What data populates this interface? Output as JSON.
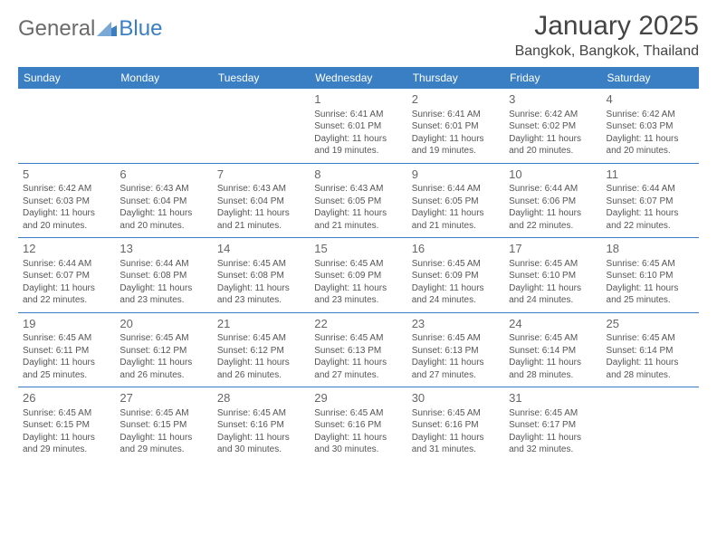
{
  "brand": {
    "name1": "General",
    "name2": "Blue"
  },
  "title": "January 2025",
  "location": "Bangkok, Bangkok, Thailand",
  "colors": {
    "header_bg": "#3a7fc4",
    "header_text": "#ffffff",
    "row_border": "#3a7fc4",
    "text": "#555555",
    "daynum": "#666666",
    "page_bg": "#ffffff"
  },
  "typography": {
    "title_fontsize": 30,
    "location_fontsize": 16,
    "weekday_fontsize": 12,
    "daynum_fontsize": 13,
    "body_fontsize": 10
  },
  "weekdays": [
    "Sunday",
    "Monday",
    "Tuesday",
    "Wednesday",
    "Thursday",
    "Friday",
    "Saturday"
  ],
  "weeks": [
    [
      null,
      null,
      null,
      {
        "d": "1",
        "sr": "Sunrise: 6:41 AM",
        "ss": "Sunset: 6:01 PM",
        "dl1": "Daylight: 11 hours",
        "dl2": "and 19 minutes."
      },
      {
        "d": "2",
        "sr": "Sunrise: 6:41 AM",
        "ss": "Sunset: 6:01 PM",
        "dl1": "Daylight: 11 hours",
        "dl2": "and 19 minutes."
      },
      {
        "d": "3",
        "sr": "Sunrise: 6:42 AM",
        "ss": "Sunset: 6:02 PM",
        "dl1": "Daylight: 11 hours",
        "dl2": "and 20 minutes."
      },
      {
        "d": "4",
        "sr": "Sunrise: 6:42 AM",
        "ss": "Sunset: 6:03 PM",
        "dl1": "Daylight: 11 hours",
        "dl2": "and 20 minutes."
      }
    ],
    [
      {
        "d": "5",
        "sr": "Sunrise: 6:42 AM",
        "ss": "Sunset: 6:03 PM",
        "dl1": "Daylight: 11 hours",
        "dl2": "and 20 minutes."
      },
      {
        "d": "6",
        "sr": "Sunrise: 6:43 AM",
        "ss": "Sunset: 6:04 PM",
        "dl1": "Daylight: 11 hours",
        "dl2": "and 20 minutes."
      },
      {
        "d": "7",
        "sr": "Sunrise: 6:43 AM",
        "ss": "Sunset: 6:04 PM",
        "dl1": "Daylight: 11 hours",
        "dl2": "and 21 minutes."
      },
      {
        "d": "8",
        "sr": "Sunrise: 6:43 AM",
        "ss": "Sunset: 6:05 PM",
        "dl1": "Daylight: 11 hours",
        "dl2": "and 21 minutes."
      },
      {
        "d": "9",
        "sr": "Sunrise: 6:44 AM",
        "ss": "Sunset: 6:05 PM",
        "dl1": "Daylight: 11 hours",
        "dl2": "and 21 minutes."
      },
      {
        "d": "10",
        "sr": "Sunrise: 6:44 AM",
        "ss": "Sunset: 6:06 PM",
        "dl1": "Daylight: 11 hours",
        "dl2": "and 22 minutes."
      },
      {
        "d": "11",
        "sr": "Sunrise: 6:44 AM",
        "ss": "Sunset: 6:07 PM",
        "dl1": "Daylight: 11 hours",
        "dl2": "and 22 minutes."
      }
    ],
    [
      {
        "d": "12",
        "sr": "Sunrise: 6:44 AM",
        "ss": "Sunset: 6:07 PM",
        "dl1": "Daylight: 11 hours",
        "dl2": "and 22 minutes."
      },
      {
        "d": "13",
        "sr": "Sunrise: 6:44 AM",
        "ss": "Sunset: 6:08 PM",
        "dl1": "Daylight: 11 hours",
        "dl2": "and 23 minutes."
      },
      {
        "d": "14",
        "sr": "Sunrise: 6:45 AM",
        "ss": "Sunset: 6:08 PM",
        "dl1": "Daylight: 11 hours",
        "dl2": "and 23 minutes."
      },
      {
        "d": "15",
        "sr": "Sunrise: 6:45 AM",
        "ss": "Sunset: 6:09 PM",
        "dl1": "Daylight: 11 hours",
        "dl2": "and 23 minutes."
      },
      {
        "d": "16",
        "sr": "Sunrise: 6:45 AM",
        "ss": "Sunset: 6:09 PM",
        "dl1": "Daylight: 11 hours",
        "dl2": "and 24 minutes."
      },
      {
        "d": "17",
        "sr": "Sunrise: 6:45 AM",
        "ss": "Sunset: 6:10 PM",
        "dl1": "Daylight: 11 hours",
        "dl2": "and 24 minutes."
      },
      {
        "d": "18",
        "sr": "Sunrise: 6:45 AM",
        "ss": "Sunset: 6:10 PM",
        "dl1": "Daylight: 11 hours",
        "dl2": "and 25 minutes."
      }
    ],
    [
      {
        "d": "19",
        "sr": "Sunrise: 6:45 AM",
        "ss": "Sunset: 6:11 PM",
        "dl1": "Daylight: 11 hours",
        "dl2": "and 25 minutes."
      },
      {
        "d": "20",
        "sr": "Sunrise: 6:45 AM",
        "ss": "Sunset: 6:12 PM",
        "dl1": "Daylight: 11 hours",
        "dl2": "and 26 minutes."
      },
      {
        "d": "21",
        "sr": "Sunrise: 6:45 AM",
        "ss": "Sunset: 6:12 PM",
        "dl1": "Daylight: 11 hours",
        "dl2": "and 26 minutes."
      },
      {
        "d": "22",
        "sr": "Sunrise: 6:45 AM",
        "ss": "Sunset: 6:13 PM",
        "dl1": "Daylight: 11 hours",
        "dl2": "and 27 minutes."
      },
      {
        "d": "23",
        "sr": "Sunrise: 6:45 AM",
        "ss": "Sunset: 6:13 PM",
        "dl1": "Daylight: 11 hours",
        "dl2": "and 27 minutes."
      },
      {
        "d": "24",
        "sr": "Sunrise: 6:45 AM",
        "ss": "Sunset: 6:14 PM",
        "dl1": "Daylight: 11 hours",
        "dl2": "and 28 minutes."
      },
      {
        "d": "25",
        "sr": "Sunrise: 6:45 AM",
        "ss": "Sunset: 6:14 PM",
        "dl1": "Daylight: 11 hours",
        "dl2": "and 28 minutes."
      }
    ],
    [
      {
        "d": "26",
        "sr": "Sunrise: 6:45 AM",
        "ss": "Sunset: 6:15 PM",
        "dl1": "Daylight: 11 hours",
        "dl2": "and 29 minutes."
      },
      {
        "d": "27",
        "sr": "Sunrise: 6:45 AM",
        "ss": "Sunset: 6:15 PM",
        "dl1": "Daylight: 11 hours",
        "dl2": "and 29 minutes."
      },
      {
        "d": "28",
        "sr": "Sunrise: 6:45 AM",
        "ss": "Sunset: 6:16 PM",
        "dl1": "Daylight: 11 hours",
        "dl2": "and 30 minutes."
      },
      {
        "d": "29",
        "sr": "Sunrise: 6:45 AM",
        "ss": "Sunset: 6:16 PM",
        "dl1": "Daylight: 11 hours",
        "dl2": "and 30 minutes."
      },
      {
        "d": "30",
        "sr": "Sunrise: 6:45 AM",
        "ss": "Sunset: 6:16 PM",
        "dl1": "Daylight: 11 hours",
        "dl2": "and 31 minutes."
      },
      {
        "d": "31",
        "sr": "Sunrise: 6:45 AM",
        "ss": "Sunset: 6:17 PM",
        "dl1": "Daylight: 11 hours",
        "dl2": "and 32 minutes."
      },
      null
    ]
  ]
}
